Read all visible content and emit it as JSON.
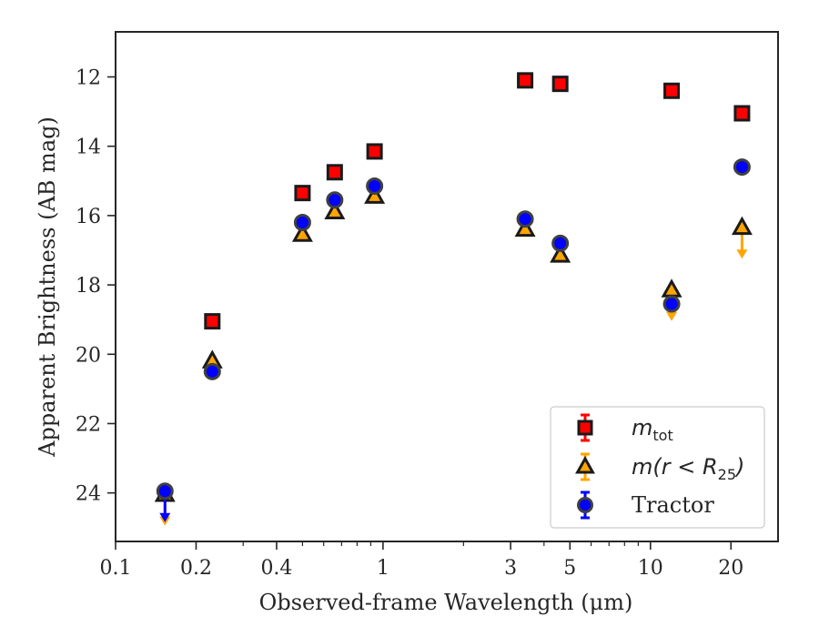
{
  "chart_data": {
    "type": "scatter",
    "xlabel": "Observed-frame Wavelength (μm)",
    "ylabel": "Apparent Brightness (AB mag)",
    "xscale": "log",
    "xlim": [
      0.1,
      30
    ],
    "ylim": [
      25.4,
      10.7
    ],
    "y_inverted": true,
    "x_ticks": [
      0.1,
      0.2,
      0.4,
      1,
      3,
      5,
      10,
      20
    ],
    "x_tick_labels": [
      "0.1",
      "0.2",
      "0.4",
      "1",
      "3",
      "5",
      "10",
      "20"
    ],
    "y_ticks": [
      12,
      14,
      16,
      18,
      20,
      22,
      24
    ],
    "y_tick_labels": [
      "12",
      "14",
      "16",
      "18",
      "20",
      "22",
      "24"
    ],
    "grid": false,
    "legend_placement": "lower-right",
    "series": [
      {
        "name": "m_tot",
        "legend_label": {
          "base": "m",
          "sub": "tot"
        },
        "marker": "square",
        "color": "#ff0000",
        "edge_color": "#1a1a1a",
        "points": [
          {
            "x": 0.23,
            "y": 19.05
          },
          {
            "x": 0.5,
            "y": 15.35
          },
          {
            "x": 0.66,
            "y": 14.75
          },
          {
            "x": 0.93,
            "y": 14.15
          },
          {
            "x": 3.4,
            "y": 12.1
          },
          {
            "x": 4.6,
            "y": 12.2
          },
          {
            "x": 12.0,
            "y": 12.4
          },
          {
            "x": 22.0,
            "y": 13.05
          }
        ]
      },
      {
        "name": "m(r < R25)",
        "legend_label": {
          "base": "m(r < R",
          "sub": "25",
          "tail": ")"
        },
        "marker": "triangle",
        "color": "#ffa500",
        "edge_color": "#1a1a1a",
        "points": [
          {
            "x": 0.153,
            "y": 24.05,
            "upper_limit": true
          },
          {
            "x": 0.23,
            "y": 20.2
          },
          {
            "x": 0.5,
            "y": 16.55
          },
          {
            "x": 0.66,
            "y": 15.9
          },
          {
            "x": 0.93,
            "y": 15.45
          },
          {
            "x": 3.4,
            "y": 16.4
          },
          {
            "x": 4.6,
            "y": 17.15
          },
          {
            "x": 12.0,
            "y": 18.15,
            "upper_limit": true
          },
          {
            "x": 22.0,
            "y": 16.35,
            "upper_limit": true
          }
        ]
      },
      {
        "name": "Tractor",
        "legend_label": {
          "base": "Tractor"
        },
        "marker": "circle",
        "color": "#0000ff",
        "edge_color": "#404040",
        "points": [
          {
            "x": 0.153,
            "y": 23.95,
            "upper_limit": true
          },
          {
            "x": 0.23,
            "y": 20.5
          },
          {
            "x": 0.5,
            "y": 16.2
          },
          {
            "x": 0.66,
            "y": 15.55
          },
          {
            "x": 0.93,
            "y": 15.15
          },
          {
            "x": 3.4,
            "y": 16.1
          },
          {
            "x": 4.6,
            "y": 16.8
          },
          {
            "x": 12.0,
            "y": 18.55
          },
          {
            "x": 22.0,
            "y": 14.6
          }
        ]
      }
    ]
  }
}
